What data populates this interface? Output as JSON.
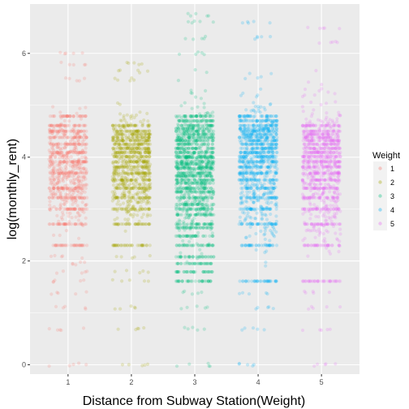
{
  "chart_data": {
    "type": "scatter",
    "xlabel": "Distance from Subway Station(Weight)",
    "ylabel": "log(monthly_rent)",
    "x_ticks": [
      "1",
      "2",
      "3",
      "4",
      "5"
    ],
    "y_ticks": [
      "0",
      "2",
      "4",
      "6"
    ],
    "xlim": [
      0.4,
      5.6
    ],
    "ylim": [
      -0.18,
      6.95
    ],
    "jitter_width": 0.3,
    "point_alpha": 0.2,
    "grid": true,
    "legend": {
      "title": "Weight",
      "position": "right",
      "entries": [
        "1",
        "2",
        "3",
        "4",
        "5"
      ]
    },
    "series": [
      {
        "name": "1",
        "color": "#F8766D",
        "bands": [
          2.3,
          2.71,
          3.0,
          3.22,
          3.4,
          3.69,
          3.91,
          4.09,
          4.25,
          4.38,
          4.5,
          4.61,
          4.79
        ],
        "scatter_range": [
          2.3,
          5.2
        ],
        "outliers": [
          0.0,
          0.69,
          1.1,
          1.39,
          1.61,
          1.79,
          1.95,
          2.08,
          5.5,
          5.8,
          6.0
        ]
      },
      {
        "name": "2",
        "color": "#A3A500",
        "bands": [
          2.3,
          2.71,
          3.0,
          3.22,
          3.4,
          3.56,
          3.69,
          3.81,
          3.91,
          4.01,
          4.09,
          4.17,
          4.25,
          4.32,
          4.38,
          4.44,
          4.5,
          4.61
        ],
        "scatter_range": [
          2.3,
          5.3
        ],
        "outliers": [
          0.0,
          0.69,
          1.1,
          1.61,
          1.79,
          2.08,
          5.5,
          5.65,
          5.8
        ]
      },
      {
        "name": "3",
        "color": "#00BF7D",
        "bands": [
          1.61,
          1.79,
          1.95,
          2.08,
          2.3,
          2.48,
          2.64,
          2.71,
          2.89,
          3.0,
          3.09,
          3.22,
          3.33,
          3.4,
          3.5,
          3.56,
          3.64,
          3.69,
          3.78,
          3.81,
          3.87,
          3.91,
          3.99,
          4.01,
          4.09,
          4.17,
          4.25,
          4.32,
          4.38,
          4.44,
          4.5,
          4.55,
          4.61,
          4.7,
          4.79
        ],
        "scatter_range": [
          1.6,
          5.8
        ],
        "outliers": [
          0.0,
          0.69,
          1.1,
          1.39,
          6.0,
          6.3,
          6.6,
          6.75
        ]
      },
      {
        "name": "4",
        "color": "#00B0F6",
        "bands": [
          1.61,
          2.3,
          2.71,
          3.0,
          3.22,
          3.4,
          3.56,
          3.69,
          3.81,
          3.91,
          4.01,
          4.09,
          4.17,
          4.25,
          4.32,
          4.38,
          4.44,
          4.5,
          4.55,
          4.61,
          4.7,
          4.79
        ],
        "scatter_range": [
          1.6,
          6.0
        ],
        "outliers": [
          0.0,
          0.69,
          1.1,
          1.39,
          6.3,
          6.6
        ]
      },
      {
        "name": "5",
        "color": "#E76BF3",
        "bands": [
          1.61,
          2.3,
          2.71,
          3.0,
          3.22,
          3.4,
          3.56,
          3.69,
          3.81,
          3.91,
          4.01,
          4.09,
          4.17,
          4.25,
          4.32,
          4.38,
          4.44,
          4.5,
          4.61
        ],
        "scatter_range": [
          1.6,
          5.9
        ],
        "outliers": [
          0.0,
          0.69,
          1.1,
          1.39,
          6.2,
          6.5
        ]
      }
    ]
  }
}
